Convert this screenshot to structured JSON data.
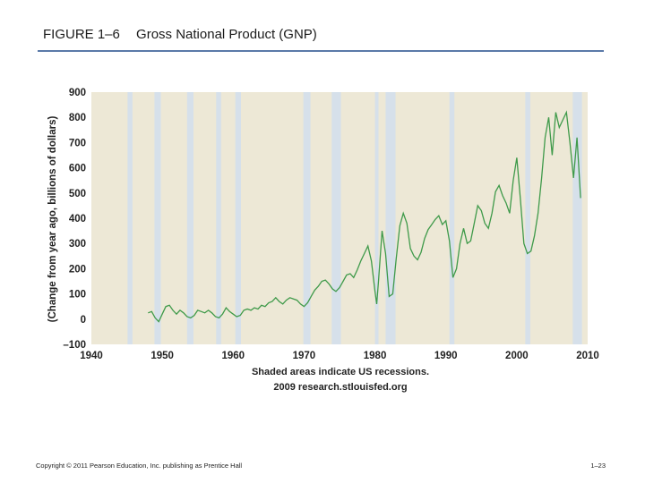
{
  "slide": {
    "figure_label": "FIGURE 1–6",
    "title": "Gross National Product (GNP)",
    "copyright": "Copyright © 2011 Pearson Education, Inc. publishing as Prentice Hall",
    "page_number": "1–23"
  },
  "colors": {
    "plot_background": "#ede8d6",
    "recession_band": "#d6e0ea",
    "line": "#3f9a4a",
    "header_rule": "#5a7aa8"
  },
  "chart_data": {
    "type": "line",
    "title": "",
    "xlabel": "",
    "ylabel": "(Change from year ago, billions of dollars)",
    "caption_lines": [
      "Shaded areas indicate US recessions.",
      "2009 research.stlouisfed.org"
    ],
    "xlim": [
      1940,
      2010
    ],
    "ylim": [
      -100,
      900
    ],
    "x_ticks": [
      1940,
      1950,
      1960,
      1970,
      1980,
      1990,
      2000,
      2010
    ],
    "y_ticks": [
      -100,
      0,
      100,
      200,
      300,
      400,
      500,
      600,
      700,
      800,
      900
    ],
    "y_tick_labels": [
      "–100",
      "0",
      "100",
      "200",
      "300",
      "400",
      "500",
      "600",
      "700",
      "800",
      "900"
    ],
    "grid": false,
    "legend": "none",
    "recessions": [
      [
        1945.1,
        1945.8
      ],
      [
        1948.9,
        1949.8
      ],
      [
        1953.5,
        1954.4
      ],
      [
        1957.6,
        1958.3
      ],
      [
        1960.3,
        1961.1
      ],
      [
        1969.9,
        1970.9
      ],
      [
        1973.9,
        1975.2
      ],
      [
        1980.0,
        1980.5
      ],
      [
        1981.5,
        1982.9
      ],
      [
        1990.5,
        1991.2
      ],
      [
        2001.2,
        2001.9
      ],
      [
        2007.9,
        2009.2
      ]
    ],
    "series": [
      {
        "x": [
          1948.0,
          1948.5,
          1949.0,
          1949.5,
          1950.0,
          1950.5,
          1951.0,
          1951.5,
          1952.0,
          1952.5,
          1953.0,
          1953.5,
          1954.0,
          1954.5,
          1955.0,
          1955.5,
          1956.0,
          1956.5,
          1957.0,
          1957.5,
          1958.0,
          1958.5,
          1959.0,
          1959.5,
          1960.0,
          1960.5,
          1961.0,
          1961.5,
          1962.0,
          1962.5,
          1963.0,
          1963.5,
          1964.0,
          1964.5,
          1965.0,
          1965.5,
          1966.0,
          1966.5,
          1967.0,
          1967.5,
          1968.0,
          1968.5,
          1969.0,
          1969.5,
          1970.0,
          1970.5,
          1971.0,
          1971.5,
          1972.0,
          1972.5,
          1973.0,
          1973.5,
          1974.0,
          1974.5,
          1975.0,
          1975.5,
          1976.0,
          1976.5,
          1977.0,
          1977.5,
          1978.0,
          1978.5,
          1979.0,
          1979.5,
          1980.0,
          1980.25,
          1980.5,
          1981.0,
          1981.5,
          1982.0,
          1982.5,
          1983.0,
          1983.5,
          1984.0,
          1984.5,
          1985.0,
          1985.5,
          1986.0,
          1986.5,
          1987.0,
          1987.5,
          1988.0,
          1988.5,
          1989.0,
          1989.5,
          1990.0,
          1990.5,
          1991.0,
          1991.5,
          1992.0,
          1992.5,
          1993.0,
          1993.5,
          1994.0,
          1994.5,
          1995.0,
          1995.5,
          1996.0,
          1996.5,
          1997.0,
          1997.5,
          1998.0,
          1998.5,
          1999.0,
          1999.5,
          2000.0,
          2000.5,
          2001.0,
          2001.5,
          2002.0,
          2002.5,
          2003.0,
          2003.5,
          2004.0,
          2004.5,
          2005.0,
          2005.5,
          2006.0,
          2006.5,
          2007.0,
          2007.5,
          2008.0,
          2008.5,
          2009.0
        ],
        "y": [
          25,
          30,
          5,
          -10,
          20,
          50,
          55,
          35,
          20,
          35,
          25,
          10,
          5,
          15,
          35,
          30,
          25,
          35,
          25,
          10,
          5,
          20,
          45,
          30,
          20,
          10,
          15,
          35,
          40,
          35,
          45,
          40,
          55,
          50,
          65,
          70,
          85,
          70,
          60,
          75,
          85,
          80,
          75,
          60,
          50,
          65,
          90,
          115,
          130,
          150,
          155,
          140,
          120,
          110,
          125,
          150,
          175,
          180,
          165,
          195,
          230,
          260,
          290,
          230,
          110,
          60,
          150,
          350,
          260,
          90,
          100,
          240,
          370,
          420,
          380,
          280,
          250,
          235,
          265,
          320,
          355,
          375,
          395,
          410,
          375,
          390,
          310,
          165,
          200,
          300,
          360,
          300,
          310,
          380,
          450,
          430,
          380,
          360,
          420,
          505,
          530,
          490,
          460,
          420,
          550,
          640,
          480,
          300,
          260,
          270,
          330,
          420,
          560,
          720,
          800,
          650,
          820,
          760,
          790,
          820,
          700,
          560,
          720,
          480
        ]
      }
    ]
  }
}
